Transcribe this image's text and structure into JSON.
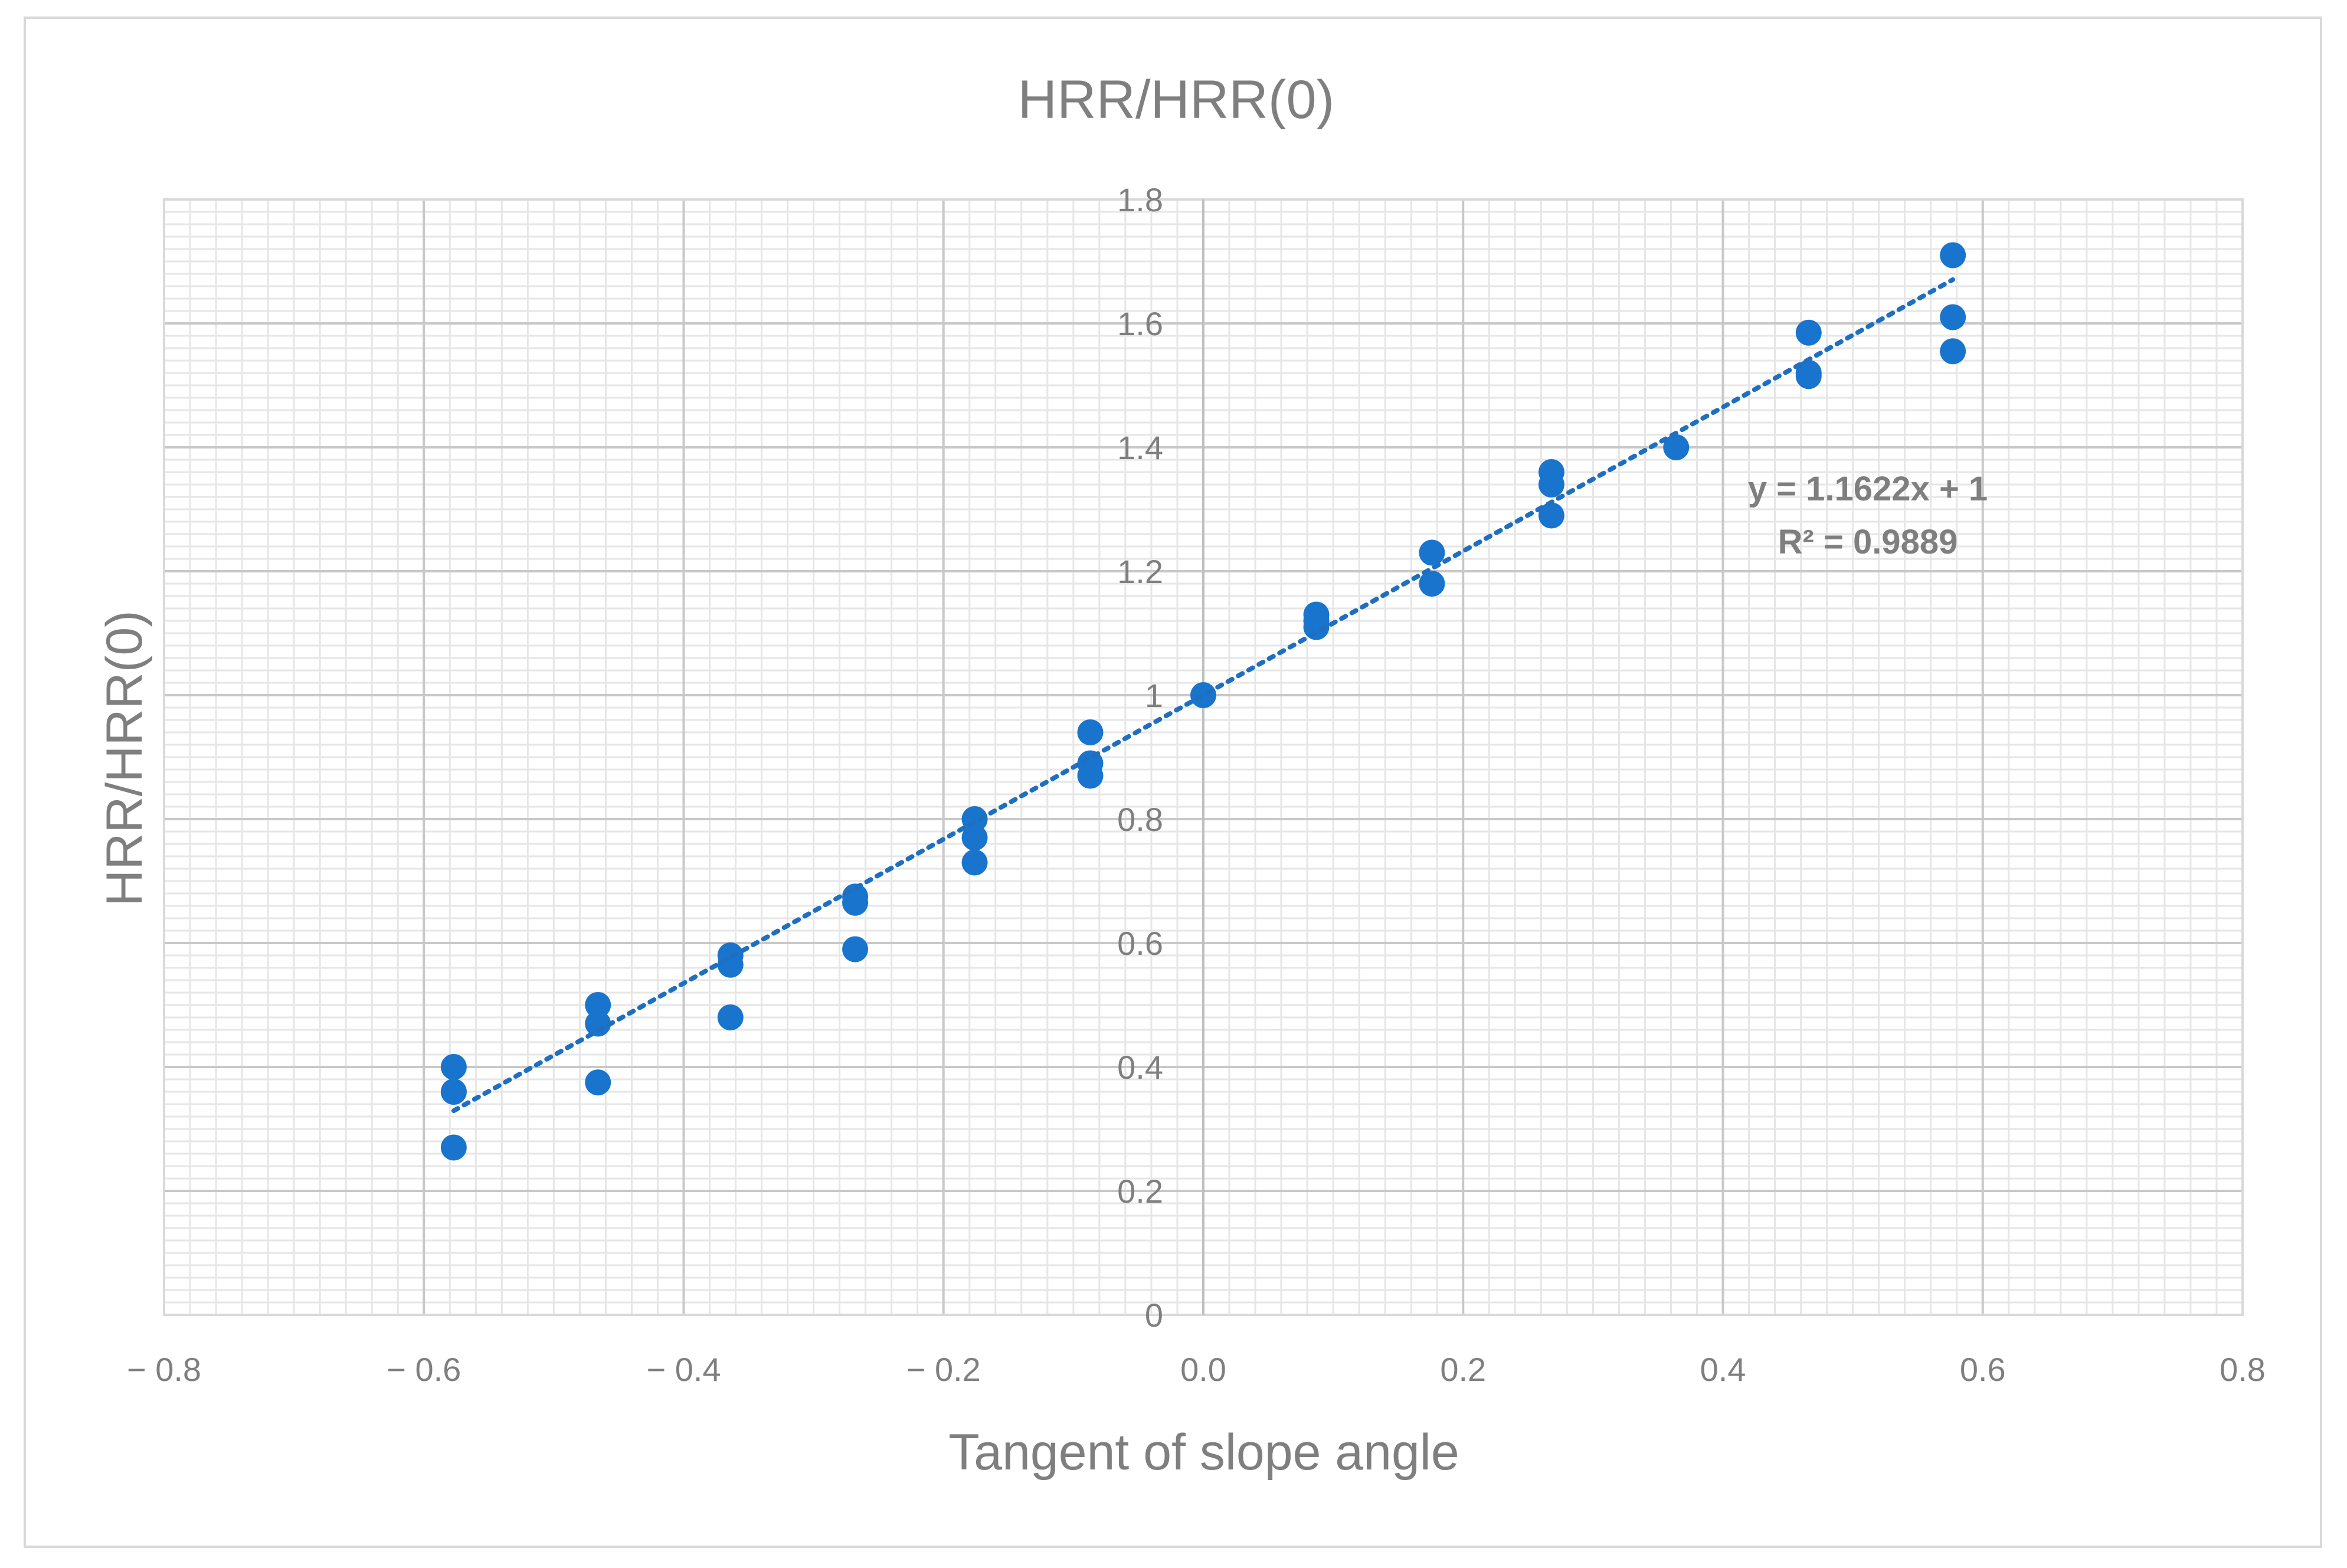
{
  "chart_data": {
    "type": "scatter",
    "title": "HRR/HRR(0)",
    "xlabel": "Tangent of slope angle",
    "ylabel": "HRR/HRR(0)",
    "xlim": [
      -0.8,
      0.8
    ],
    "ylim": [
      0,
      1.8
    ],
    "x_ticks": [
      "− 0.8",
      "− 0.6",
      "− 0.4",
      "− 0.2",
      "0.0",
      "0.2",
      "0.4",
      "0.6",
      "0.8"
    ],
    "x_tick_values": [
      -0.8,
      -0.6,
      -0.4,
      -0.2,
      0.0,
      0.2,
      0.4,
      0.6,
      0.8
    ],
    "y_ticks": [
      "0",
      "0.2",
      "0.4",
      "0.6",
      "0.8",
      "1",
      "1.2",
      "1.4",
      "1.6",
      "1.8"
    ],
    "y_tick_values": [
      0,
      0.2,
      0.4,
      0.6,
      0.8,
      1.0,
      1.2,
      1.4,
      1.6,
      1.8
    ],
    "grid": true,
    "legend": "none",
    "colors": {
      "marker": "#1874cd",
      "trendline": "#1f6fc0",
      "grid_major": "#c8c8c8",
      "grid_minor": "#e6e6e6",
      "text": "#7f7f7f"
    },
    "series": [
      {
        "x": [
          -0.577,
          -0.577,
          -0.577,
          -0.577,
          -0.466,
          -0.466,
          -0.466,
          -0.364,
          -0.364,
          -0.364,
          -0.268,
          -0.268,
          -0.268,
          -0.176,
          -0.176,
          -0.176,
          -0.087,
          -0.087,
          -0.087,
          0.0,
          0.087,
          0.087,
          0.087,
          0.176,
          0.176,
          0.268,
          0.268,
          0.268,
          0.364,
          0.466,
          0.466,
          0.466,
          0.577,
          0.577,
          0.577
        ],
        "y": [
          0.4,
          0.36,
          0.36,
          0.27,
          0.5,
          0.47,
          0.375,
          0.58,
          0.565,
          0.48,
          0.675,
          0.665,
          0.59,
          0.8,
          0.77,
          0.73,
          0.94,
          0.89,
          0.87,
          1.0,
          1.13,
          1.12,
          1.11,
          1.23,
          1.18,
          1.36,
          1.34,
          1.29,
          1.4,
          1.585,
          1.52,
          1.515,
          1.71,
          1.61,
          1.555
        ]
      }
    ],
    "trendline": {
      "type": "linear",
      "slope": 1.1622,
      "intercept": 1,
      "x_range": [
        -0.577,
        0.577
      ],
      "equation_label": "y = 1.1622x + 1",
      "r2_label": "R² = 0.9889"
    }
  }
}
